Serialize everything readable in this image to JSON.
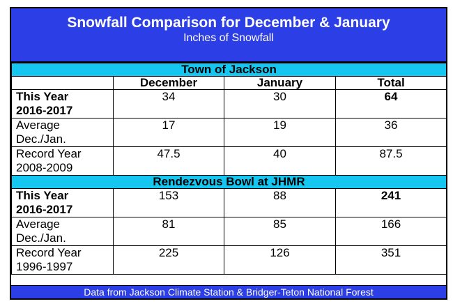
{
  "title": "Snowfall Comparison for December & January",
  "subtitle": "Inches of Snowfall",
  "columns": [
    "December",
    "January",
    "Total"
  ],
  "sections": [
    {
      "name": "Town of Jackson",
      "rows": [
        {
          "label_1": "This Year",
          "label_2": "2016-2017",
          "december": "34",
          "january": "30",
          "total": "64"
        },
        {
          "label_1": "Average",
          "label_2": "Dec./Jan.",
          "december": "17",
          "january": "19",
          "total": "36"
        },
        {
          "label_1": "Record Year",
          "label_2": "2008-2009",
          "december": "47.5",
          "january": "40",
          "total": "87.5"
        }
      ]
    },
    {
      "name": "Rendezvous Bowl at JHMR",
      "rows": [
        {
          "label_1": "This Year",
          "label_2": "2016-2017",
          "december": "153",
          "january": "88",
          "total": "241"
        },
        {
          "label_1": "Average",
          "label_2": "Dec./Jan.",
          "december": "81",
          "january": "85",
          "total": "166"
        },
        {
          "label_1": "Record Year",
          "label_2": "1996-1997",
          "december": "225",
          "january": "126",
          "total": "351"
        }
      ]
    }
  ],
  "footer": "Data from Jackson Climate Station & Bridger-Teton National Forest",
  "colors": {
    "header_blue": "#2c3ee6",
    "section_cyan": "#14c6f0"
  }
}
